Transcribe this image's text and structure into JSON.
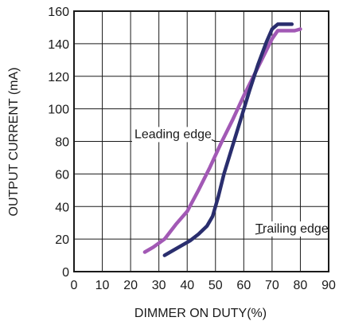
{
  "chart_data": {
    "type": "line",
    "title": "",
    "xlabel": "DIMMER ON DUTY(%)",
    "ylabel": "OUTPUT CURRENT (mA)",
    "xlim": [
      0,
      90
    ],
    "ylim": [
      0,
      160
    ],
    "xticks": [
      0,
      10,
      20,
      30,
      40,
      50,
      60,
      70,
      80,
      90
    ],
    "yticks": [
      0,
      20,
      40,
      60,
      80,
      100,
      120,
      140,
      160
    ],
    "grid": true,
    "series": [
      {
        "name": "Leading edge",
        "color": "#a259b5",
        "x": [
          25,
          28,
          32,
          36,
          40,
          44,
          48,
          52,
          56,
          60,
          64,
          68,
          70,
          72,
          74,
          76,
          78,
          80
        ],
        "y": [
          12,
          15,
          20,
          29,
          37,
          50,
          64,
          79,
          93,
          108,
          122,
          136,
          143,
          148,
          148,
          148,
          148,
          149
        ],
        "label_text": "Leading edge",
        "label_at": {
          "x": 35,
          "y": 82
        },
        "label_anchor": {
          "x": 50,
          "y": 80
        }
      },
      {
        "name": "Trailing edge",
        "color": "#2a2e6e",
        "x": [
          32,
          35,
          38,
          41,
          44,
          47,
          49,
          51,
          53,
          56,
          59,
          62,
          65,
          68,
          70,
          72,
          74,
          77
        ],
        "y": [
          10,
          13,
          16,
          19,
          23,
          28,
          34,
          46,
          60,
          77,
          94,
          111,
          127,
          141,
          149,
          152,
          152,
          152
        ],
        "label_text": "Trailing edge",
        "label_at": {
          "x": 77,
          "y": 24
        },
        "label_anchor": {
          "x": 67,
          "y": 24
        }
      }
    ]
  }
}
